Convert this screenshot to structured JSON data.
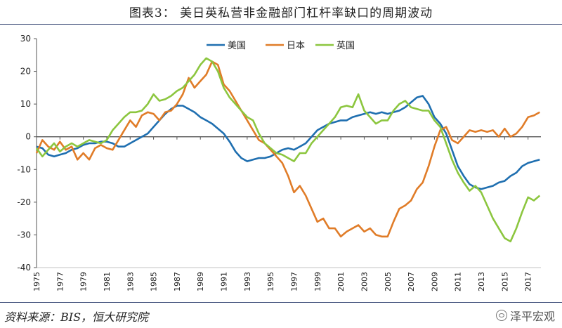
{
  "page": {
    "title": "图表3：   美日英私营非金融部门杠杆率缺口的周期波动",
    "source": "资料来源：BIS，恒大研究院",
    "watermark": "泽平宏观"
  },
  "chart_data": {
    "type": "line",
    "title": "图表3：   美日英私营非金融部门杠杆率缺口的周期波动",
    "xlabel": "",
    "ylabel": "",
    "ylim": [
      -40,
      30
    ],
    "yticks": [
      -40,
      -30,
      -20,
      -10,
      0,
      10,
      20,
      30
    ],
    "xlim": [
      1975,
      2018.1
    ],
    "xticks": [
      "1975",
      "1977",
      "1979",
      "1981",
      "1983",
      "1985",
      "1987",
      "1989",
      "1991",
      "1993",
      "1995",
      "1997",
      "1999",
      "2001",
      "2003",
      "2005",
      "2007",
      "2009",
      "2011",
      "2013",
      "2015",
      "2017"
    ],
    "legend_position": "top-center",
    "grid": false,
    "series": [
      {
        "name": "美国",
        "color": "#1f6fb0",
        "points": [
          [
            1975,
            -3
          ],
          [
            1975.5,
            -3.5
          ],
          [
            1976,
            -5.5
          ],
          [
            1976.5,
            -6
          ],
          [
            1977,
            -5.5
          ],
          [
            1977.5,
            -5
          ],
          [
            1978,
            -4
          ],
          [
            1978.5,
            -3.5
          ],
          [
            1979,
            -2.5
          ],
          [
            1979.5,
            -2
          ],
          [
            1980,
            -2
          ],
          [
            1980.5,
            -1.5
          ],
          [
            1981,
            -1.5
          ],
          [
            1981.5,
            -2
          ],
          [
            1982,
            -3
          ],
          [
            1982.5,
            -3
          ],
          [
            1983,
            -2
          ],
          [
            1983.5,
            -1
          ],
          [
            1984,
            0
          ],
          [
            1984.5,
            1
          ],
          [
            1985,
            3
          ],
          [
            1985.5,
            5
          ],
          [
            1986,
            7
          ],
          [
            1986.5,
            8.5
          ],
          [
            1987,
            9.5
          ],
          [
            1987.5,
            9.5
          ],
          [
            1988,
            8.5
          ],
          [
            1988.5,
            7.5
          ],
          [
            1989,
            6
          ],
          [
            1989.5,
            5
          ],
          [
            1990,
            4
          ],
          [
            1990.5,
            2.5
          ],
          [
            1991,
            1
          ],
          [
            1991.5,
            -1.5
          ],
          [
            1992,
            -4.5
          ],
          [
            1992.5,
            -6.5
          ],
          [
            1993,
            -7.5
          ],
          [
            1993.5,
            -7
          ],
          [
            1994,
            -6.5
          ],
          [
            1994.5,
            -6.5
          ],
          [
            1995,
            -6
          ],
          [
            1995.5,
            -5
          ],
          [
            1996,
            -4
          ],
          [
            1996.5,
            -3.5
          ],
          [
            1997,
            -4
          ],
          [
            1997.5,
            -3
          ],
          [
            1998,
            -2
          ],
          [
            1998.5,
            0
          ],
          [
            1999,
            2
          ],
          [
            1999.5,
            3
          ],
          [
            2000,
            4
          ],
          [
            2000.5,
            4.5
          ],
          [
            2001,
            5
          ],
          [
            2001.5,
            5
          ],
          [
            2002,
            6
          ],
          [
            2002.5,
            6.5
          ],
          [
            2003,
            7
          ],
          [
            2003.5,
            7.5
          ],
          [
            2004,
            7
          ],
          [
            2004.5,
            7.5
          ],
          [
            2005,
            7
          ],
          [
            2005.5,
            7.5
          ],
          [
            2006,
            8
          ],
          [
            2006.5,
            9
          ],
          [
            2007,
            10.5
          ],
          [
            2007.5,
            12
          ],
          [
            2008,
            12.5
          ],
          [
            2008.5,
            10
          ],
          [
            2009,
            6
          ],
          [
            2009.5,
            4
          ],
          [
            2010,
            1
          ],
          [
            2010.5,
            -4
          ],
          [
            2011,
            -9
          ],
          [
            2011.5,
            -12
          ],
          [
            2012,
            -14.5
          ],
          [
            2012.5,
            -15.5
          ],
          [
            2013,
            -16
          ],
          [
            2013.5,
            -15.5
          ],
          [
            2014,
            -15
          ],
          [
            2014.5,
            -14
          ],
          [
            2015,
            -13.5
          ],
          [
            2015.5,
            -12
          ],
          [
            2016,
            -11
          ],
          [
            2016.5,
            -9
          ],
          [
            2017,
            -8
          ],
          [
            2017.5,
            -7.5
          ],
          [
            2018,
            -7
          ]
        ]
      },
      {
        "name": "日本",
        "color": "#e07c28",
        "points": [
          [
            1975,
            -5
          ],
          [
            1975.5,
            -1
          ],
          [
            1976,
            -3
          ],
          [
            1976.5,
            -4
          ],
          [
            1977,
            -1.5
          ],
          [
            1977.5,
            -4
          ],
          [
            1978,
            -3
          ],
          [
            1978.5,
            -7
          ],
          [
            1979,
            -5
          ],
          [
            1979.5,
            -7
          ],
          [
            1980,
            -3.5
          ],
          [
            1980.5,
            -2.5
          ],
          [
            1981,
            -3.5
          ],
          [
            1981.5,
            -4
          ],
          [
            1982,
            -1
          ],
          [
            1982.5,
            2
          ],
          [
            1983,
            5
          ],
          [
            1983.5,
            3
          ],
          [
            1984,
            6.5
          ],
          [
            1984.5,
            7.5
          ],
          [
            1985,
            7
          ],
          [
            1985.5,
            5
          ],
          [
            1986,
            7.5
          ],
          [
            1986.5,
            8
          ],
          [
            1987,
            10
          ],
          [
            1987.5,
            13
          ],
          [
            1988,
            18
          ],
          [
            1988.5,
            15
          ],
          [
            1989,
            17
          ],
          [
            1989.5,
            19
          ],
          [
            1990,
            23
          ],
          [
            1990.5,
            22
          ],
          [
            1991,
            16
          ],
          [
            1991.5,
            14
          ],
          [
            1992,
            11
          ],
          [
            1992.5,
            8
          ],
          [
            1993,
            5
          ],
          [
            1993.5,
            2
          ],
          [
            1994,
            -1
          ],
          [
            1994.5,
            -2
          ],
          [
            1995,
            -4
          ],
          [
            1995.5,
            -6
          ],
          [
            1996,
            -8
          ],
          [
            1996.5,
            -12
          ],
          [
            1997,
            -17
          ],
          [
            1997.5,
            -15
          ],
          [
            1998,
            -18
          ],
          [
            1998.5,
            -22
          ],
          [
            1999,
            -26
          ],
          [
            1999.5,
            -25
          ],
          [
            2000,
            -28
          ],
          [
            2000.5,
            -28
          ],
          [
            2001,
            -30.5
          ],
          [
            2001.5,
            -29
          ],
          [
            2002,
            -28
          ],
          [
            2002.5,
            -27
          ],
          [
            2003,
            -29
          ],
          [
            2003.5,
            -28
          ],
          [
            2004,
            -30
          ],
          [
            2004.5,
            -30.5
          ],
          [
            2005,
            -30.5
          ],
          [
            2005.5,
            -26
          ],
          [
            2006,
            -22
          ],
          [
            2006.5,
            -21
          ],
          [
            2007,
            -19.5
          ],
          [
            2007.5,
            -16
          ],
          [
            2008,
            -14
          ],
          [
            2008.5,
            -9
          ],
          [
            2009,
            -3
          ],
          [
            2009.5,
            2
          ],
          [
            2010,
            3
          ],
          [
            2010.5,
            -1
          ],
          [
            2011,
            -2
          ],
          [
            2011.5,
            0
          ],
          [
            2012,
            2
          ],
          [
            2012.5,
            1.5
          ],
          [
            2013,
            2
          ],
          [
            2013.5,
            1.5
          ],
          [
            2014,
            2
          ],
          [
            2014.5,
            0
          ],
          [
            2015,
            2.5
          ],
          [
            2015.5,
            0
          ],
          [
            2016,
            1
          ],
          [
            2016.5,
            3
          ],
          [
            2017,
            6
          ],
          [
            2017.5,
            6.5
          ],
          [
            2018,
            7.5
          ]
        ]
      },
      {
        "name": "英国",
        "color": "#8cc63f",
        "points": [
          [
            1975,
            -3.5
          ],
          [
            1975.5,
            -6
          ],
          [
            1976,
            -4
          ],
          [
            1976.5,
            -2
          ],
          [
            1977,
            -4.5
          ],
          [
            1977.5,
            -3
          ],
          [
            1978,
            -2
          ],
          [
            1978.5,
            -3
          ],
          [
            1979,
            -2
          ],
          [
            1979.5,
            -1
          ],
          [
            1980,
            -1.5
          ],
          [
            1980.5,
            -2
          ],
          [
            1981,
            -1
          ],
          [
            1981.5,
            2
          ],
          [
            1982,
            4
          ],
          [
            1982.5,
            6
          ],
          [
            1983,
            7.5
          ],
          [
            1983.5,
            7.5
          ],
          [
            1984,
            8
          ],
          [
            1984.5,
            10
          ],
          [
            1985,
            13
          ],
          [
            1985.5,
            11
          ],
          [
            1986,
            11.5
          ],
          [
            1986.5,
            12.5
          ],
          [
            1987,
            14
          ],
          [
            1987.5,
            15
          ],
          [
            1988,
            17
          ],
          [
            1988.5,
            19
          ],
          [
            1989,
            22
          ],
          [
            1989.5,
            24
          ],
          [
            1990,
            23
          ],
          [
            1990.5,
            20
          ],
          [
            1991,
            15
          ],
          [
            1991.5,
            12
          ],
          [
            1992,
            10
          ],
          [
            1992.5,
            8
          ],
          [
            1993,
            6
          ],
          [
            1993.5,
            5
          ],
          [
            1994,
            1
          ],
          [
            1994.5,
            -2
          ],
          [
            1995,
            -3.5
          ],
          [
            1995.5,
            -5
          ],
          [
            1996,
            -5.5
          ],
          [
            1996.5,
            -6.5
          ],
          [
            1997,
            -7.5
          ],
          [
            1997.5,
            -5
          ],
          [
            1998,
            -5
          ],
          [
            1998.5,
            -2
          ],
          [
            1999,
            0
          ],
          [
            1999.5,
            2
          ],
          [
            2000,
            4
          ],
          [
            2000.5,
            6
          ],
          [
            2001,
            9
          ],
          [
            2001.5,
            9.5
          ],
          [
            2002,
            9
          ],
          [
            2002.5,
            13
          ],
          [
            2003,
            8
          ],
          [
            2003.5,
            6
          ],
          [
            2004,
            4
          ],
          [
            2004.5,
            5
          ],
          [
            2005,
            5
          ],
          [
            2005.5,
            8
          ],
          [
            2006,
            10
          ],
          [
            2006.5,
            11
          ],
          [
            2007,
            9
          ],
          [
            2007.5,
            8.5
          ],
          [
            2008,
            8
          ],
          [
            2008.5,
            8
          ],
          [
            2009,
            5
          ],
          [
            2009.5,
            3
          ],
          [
            2010,
            -2
          ],
          [
            2010.5,
            -7
          ],
          [
            2011,
            -11
          ],
          [
            2011.5,
            -14
          ],
          [
            2012,
            -16.5
          ],
          [
            2012.5,
            -15
          ],
          [
            2013,
            -17
          ],
          [
            2013.5,
            -21
          ],
          [
            2014,
            -25
          ],
          [
            2014.5,
            -28
          ],
          [
            2015,
            -31
          ],
          [
            2015.5,
            -32
          ],
          [
            2016,
            -28
          ],
          [
            2016.5,
            -23
          ],
          [
            2017,
            -18.5
          ],
          [
            2017.5,
            -19.5
          ],
          [
            2018,
            -18
          ]
        ]
      }
    ]
  }
}
